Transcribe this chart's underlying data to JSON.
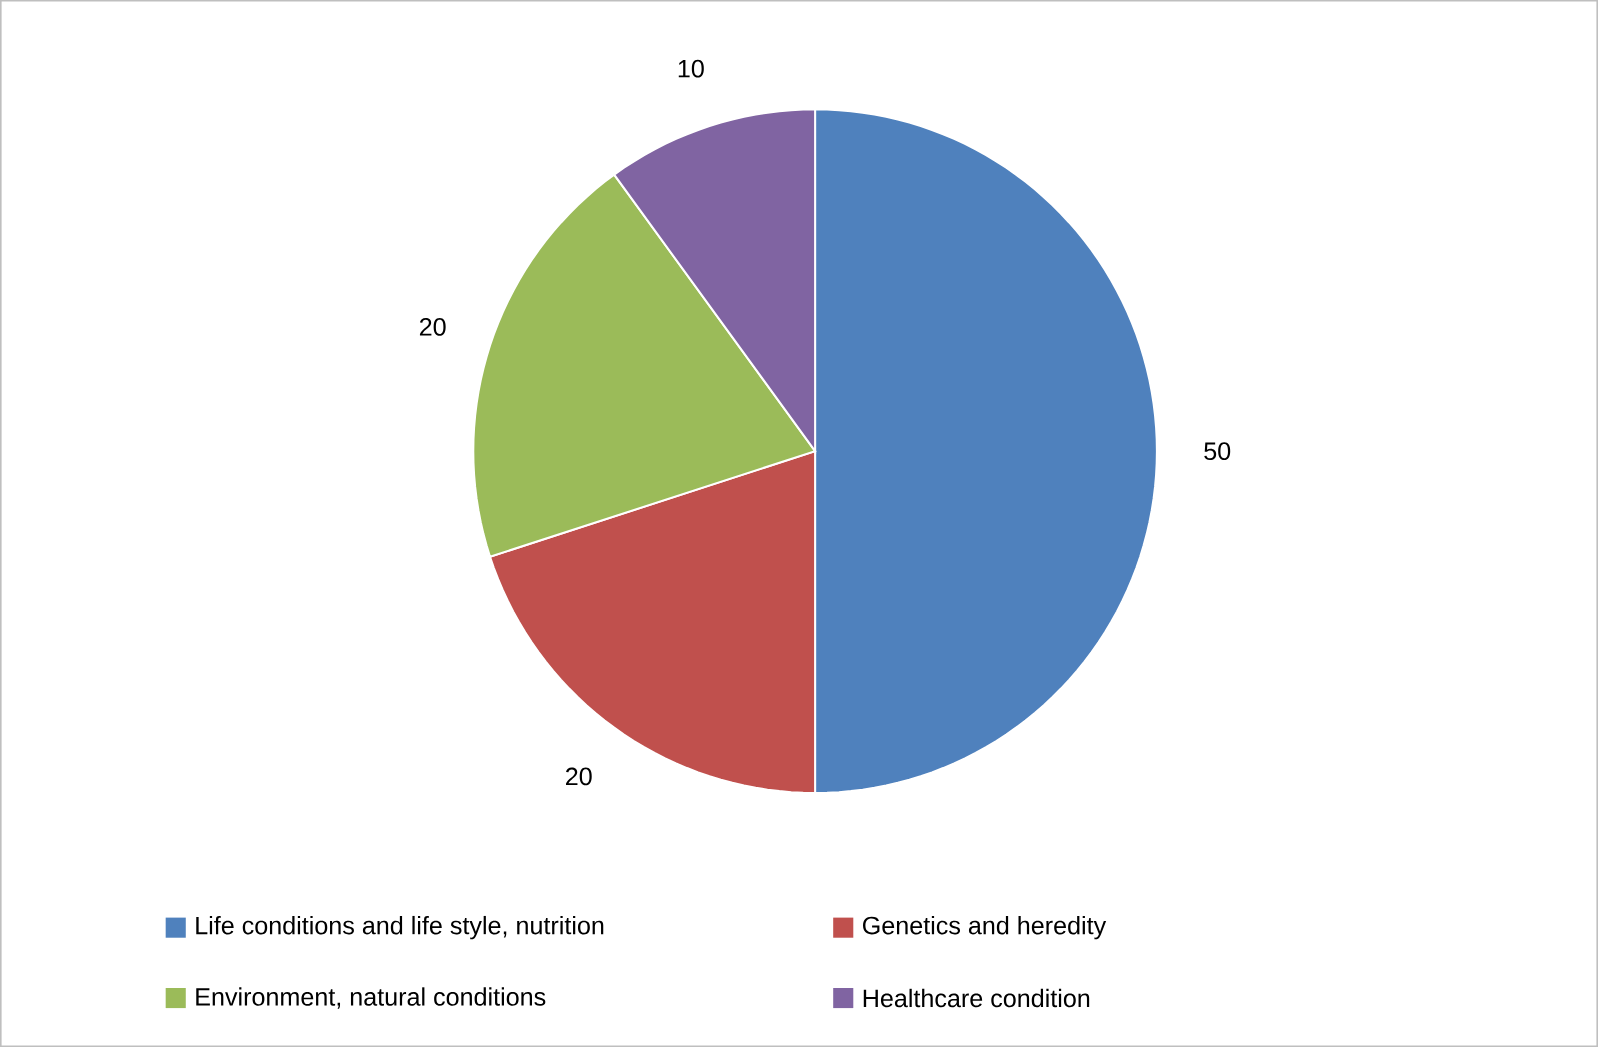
{
  "chart_data": {
    "type": "pie",
    "categories": [
      "Life conditions and life style, nutrition",
      "Genetics and heredity",
      "Environment, natural conditions",
      "Healthcare condition"
    ],
    "values": [
      50,
      20,
      20,
      10
    ],
    "colors": [
      "#4f81bd",
      "#c0504d",
      "#9bbb59",
      "#8064a2"
    ],
    "data_labels": true,
    "legend": "bottom"
  }
}
